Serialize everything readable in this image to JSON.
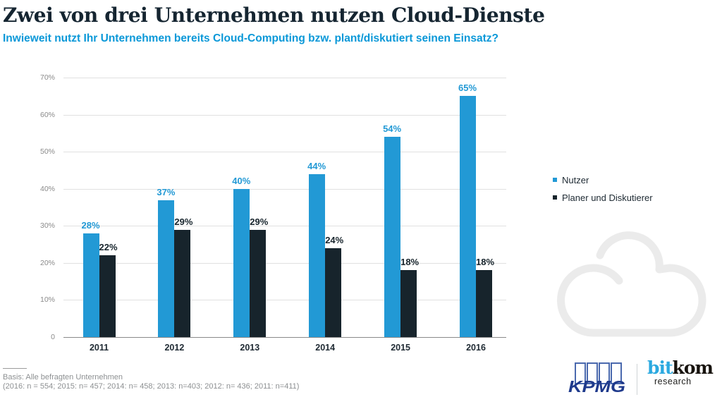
{
  "header": {
    "title": "Zwei von drei Unternehmen nutzen Cloud-Dienste",
    "subtitle": "Inwieweit nutzt Ihr Unternehmen bereits Cloud-Computing bzw. plant/diskutiert seinen Einsatz?"
  },
  "chart_data": {
    "type": "bar",
    "title": "Zwei von drei Unternehmen nutzen Cloud-Dienste",
    "categories": [
      "2011",
      "2012",
      "2013",
      "2014",
      "2015",
      "2016"
    ],
    "series": [
      {
        "name": "Nutzer",
        "color": "#2299D5",
        "values": [
          28,
          37,
          40,
          44,
          54,
          65
        ]
      },
      {
        "name": "Planer und Diskutierer",
        "color": "#17242C",
        "values": [
          22,
          29,
          29,
          24,
          18,
          18
        ]
      }
    ],
    "value_suffix": "%",
    "xlabel": "",
    "ylabel": "",
    "ylim": [
      0,
      70
    ],
    "ytick_step": 10,
    "ytick_labels": [
      "70%",
      "60%",
      "50%",
      "40%",
      "30%",
      "20%",
      "10%",
      "0"
    ],
    "grid": "horizontal",
    "legend_position": "right"
  },
  "legend": {
    "items": [
      {
        "label": "Nutzer",
        "color": "#2299D5"
      },
      {
        "label": "Planer und Diskutierer",
        "color": "#17242C"
      }
    ]
  },
  "footer": {
    "basis": "Basis: Alle befragten Unternehmen",
    "sample": "(2016: n = 554; 2015: n= 457; 2014: n= 458; 2013: n=403; 2012: n= 436; 2011: n=411)"
  },
  "branding": {
    "kpmg_text": "KPMG",
    "kpmg_text_color": "#1F3A8C",
    "kpmg_frame_color": "#4A69AE",
    "bitkom_part1": "bit",
    "bitkom_part1_color": "#2BA9E0",
    "bitkom_part2": "kom",
    "bitkom_part2_color": "#17130E",
    "bitkom_sub": "research",
    "bitkom_sub_color": "#1D1D1B"
  },
  "decor": {
    "cloud_color": "#EBEBEB"
  },
  "colors": {
    "title_color": "#152531",
    "subtitle_blue": "#0A98D8",
    "grid_color": "#E1E1E1",
    "axis_color": "#8A8A8A",
    "tick_label_color": "#8A8A8A",
    "x_label_color": "#1F2A33",
    "footer_color": "#8D9092"
  }
}
